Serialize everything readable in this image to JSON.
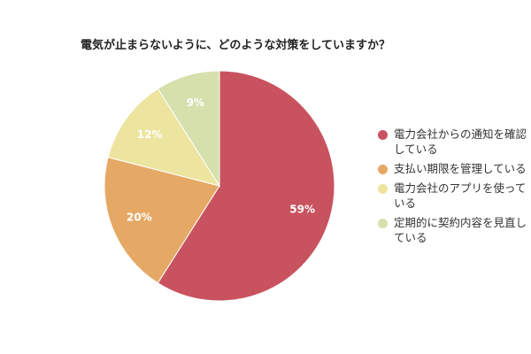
{
  "chart_data": {
    "type": "pie",
    "title": "電気が止まらないように、どのような対策をしていますか？",
    "legend_position": "right",
    "slices": [
      {
        "label_lines": [
          "電力会社からの通知を確認",
          "している"
        ],
        "value": 59,
        "value_label": "59%",
        "color": "#c9525f"
      },
      {
        "label_lines": [
          "支払い期限を管理している"
        ],
        "value": 20,
        "value_label": "20%",
        "color": "#e5a965"
      },
      {
        "label_lines": [
          "電力会社のアプリを使って",
          "いる"
        ],
        "value": 12,
        "value_label": "12%",
        "color": "#ede4a0"
      },
      {
        "label_lines": [
          "定期的に契約内容を見直し",
          "ている"
        ],
        "value": 9,
        "value_label": "9%",
        "color": "#d5e0ad"
      }
    ]
  }
}
